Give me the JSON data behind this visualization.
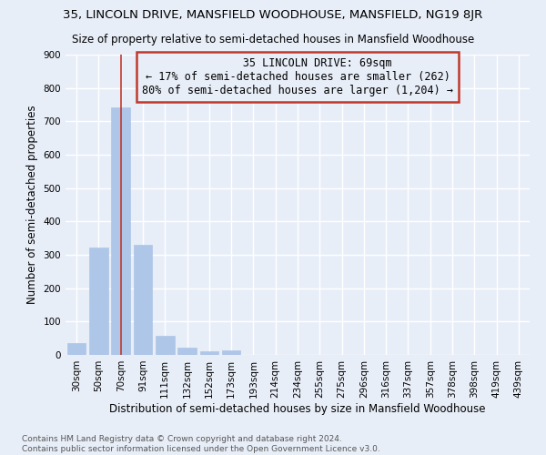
{
  "title": "35, LINCOLN DRIVE, MANSFIELD WOODHOUSE, MANSFIELD, NG19 8JR",
  "subtitle": "Size of property relative to semi-detached houses in Mansfield Woodhouse",
  "xlabel": "Distribution of semi-detached houses by size in Mansfield Woodhouse",
  "ylabel": "Number of semi-detached properties",
  "footer_line1": "Contains HM Land Registry data © Crown copyright and database right 2024.",
  "footer_line2": "Contains public sector information licensed under the Open Government Licence v3.0.",
  "categories": [
    "30sqm",
    "50sqm",
    "70sqm",
    "91sqm",
    "111sqm",
    "132sqm",
    "152sqm",
    "173sqm",
    "193sqm",
    "214sqm",
    "234sqm",
    "255sqm",
    "275sqm",
    "296sqm",
    "316sqm",
    "337sqm",
    "357sqm",
    "378sqm",
    "398sqm",
    "419sqm",
    "439sqm"
  ],
  "values": [
    35,
    322,
    743,
    330,
    57,
    23,
    12,
    13,
    0,
    0,
    0,
    0,
    0,
    0,
    0,
    0,
    0,
    0,
    0,
    0,
    0
  ],
  "bar_color": "#aec6e8",
  "vline_x": 2,
  "vline_color": "#c0392b",
  "annotation_title": "35 LINCOLN DRIVE: 69sqm",
  "annotation_line1": "← 17% of semi-detached houses are smaller (262)",
  "annotation_line2": "80% of semi-detached houses are larger (1,204) →",
  "annotation_box_color": "#c0392b",
  "ylim": [
    0,
    900
  ],
  "yticks": [
    0,
    100,
    200,
    300,
    400,
    500,
    600,
    700,
    800,
    900
  ],
  "background_color": "#e8eef8",
  "grid_color": "#ffffff",
  "title_fontsize": 9.5,
  "subtitle_fontsize": 8.5,
  "ylabel_fontsize": 8.5,
  "xlabel_fontsize": 8.5,
  "tick_fontsize": 7.5,
  "annotation_fontsize": 8.5,
  "footer_fontsize": 6.5
}
